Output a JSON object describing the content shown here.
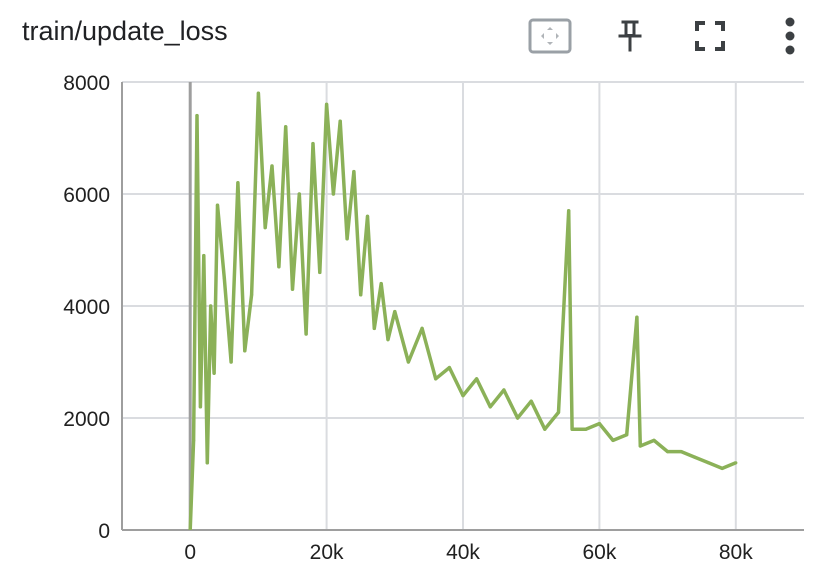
{
  "card": {
    "title": "train/update_loss"
  },
  "toolbar": {
    "icons": [
      "fit-domain-icon",
      "pin-icon",
      "fullscreen-icon",
      "more-vert-icon"
    ]
  },
  "chart_data": {
    "type": "line",
    "title": "train/update_loss",
    "xlabel": "",
    "ylabel": "",
    "xlim": [
      -10000,
      90000
    ],
    "ylim": [
      0,
      8000
    ],
    "x_ticks": [
      0,
      20000,
      40000,
      60000,
      80000
    ],
    "x_tick_labels": [
      "0",
      "20k",
      "40k",
      "60k",
      "80k"
    ],
    "y_ticks": [
      0,
      2000,
      4000,
      6000,
      8000
    ],
    "y_tick_labels": [
      "0",
      "2000",
      "4000",
      "6000",
      "8000"
    ],
    "grid": true,
    "line_color": "#8bb158",
    "series": [
      {
        "x": [
          0,
          500,
          1000,
          1500,
          2000,
          2500,
          3000,
          3500,
          4000,
          5000,
          6000,
          7000,
          8000,
          9000,
          10000,
          11000,
          12000,
          13000,
          14000,
          15000,
          16000,
          17000,
          18000,
          19000,
          20000,
          21000,
          22000,
          23000,
          24000,
          25000,
          26000,
          27000,
          28000,
          29000,
          30000,
          32000,
          34000,
          36000,
          38000,
          40000,
          42000,
          44000,
          46000,
          48000,
          50000,
          52000,
          54000,
          55500,
          56000,
          58000,
          60000,
          62000,
          64000,
          65500,
          66000,
          68000,
          70000,
          72000,
          74000,
          76000,
          78000,
          80000
        ],
        "y": [
          0,
          1600,
          7400,
          2200,
          4900,
          1200,
          4000,
          2800,
          5800,
          4500,
          3000,
          6200,
          3200,
          4200,
          7800,
          5400,
          6500,
          4700,
          7200,
          4300,
          6000,
          3500,
          6900,
          4600,
          7600,
          6000,
          7300,
          5200,
          6400,
          4200,
          5600,
          3600,
          4400,
          3400,
          3900,
          3000,
          3600,
          2700,
          2900,
          2400,
          2700,
          2200,
          2500,
          2000,
          2300,
          1800,
          2100,
          5700,
          1800,
          1800,
          1900,
          1600,
          1700,
          3800,
          1500,
          1600,
          1400,
          1400,
          1300,
          1200,
          1100,
          1200
        ]
      }
    ]
  }
}
